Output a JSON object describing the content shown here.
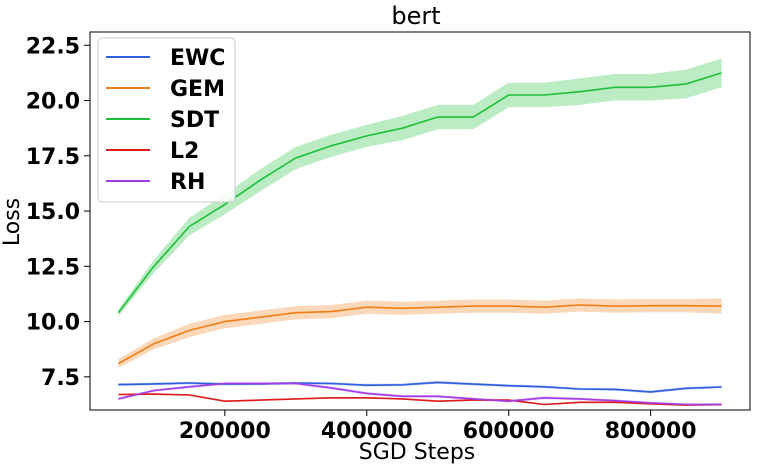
{
  "chart_data": {
    "type": "line",
    "title": "bert",
    "xlabel": "SGD Steps",
    "ylabel": "Loss",
    "xlim": [
      10000,
      940000
    ],
    "ylim": [
      6.0,
      23.1
    ],
    "x_ticks": [
      200000,
      400000,
      600000,
      800000
    ],
    "y_ticks": [
      7.5,
      10.0,
      12.5,
      15.0,
      17.5,
      20.0,
      22.5
    ],
    "x_tick_labels": [
      "200000",
      "400000",
      "600000",
      "800000"
    ],
    "y_tick_labels": [
      "7.5",
      "10.0",
      "12.5",
      "15.0",
      "17.5",
      "20.0",
      "22.5"
    ],
    "legend_position": "top-left",
    "grid": false,
    "x": [
      50000,
      100000,
      150000,
      200000,
      250000,
      300000,
      350000,
      400000,
      450000,
      500000,
      550000,
      600000,
      650000,
      700000,
      750000,
      800000,
      850000,
      900000
    ],
    "series": [
      {
        "name": "EWC",
        "color": "#2f5fe0",
        "values": [
          7.15,
          7.18,
          7.22,
          7.17,
          7.18,
          7.22,
          7.2,
          7.12,
          7.14,
          7.25,
          7.17,
          7.1,
          7.05,
          6.95,
          6.93,
          6.82,
          6.98,
          7.04
        ],
        "band": [
          0.06,
          0.06,
          0.06,
          0.06,
          0.06,
          0.06,
          0.06,
          0.06,
          0.06,
          0.06,
          0.06,
          0.06,
          0.06,
          0.06,
          0.06,
          0.06,
          0.06,
          0.06
        ]
      },
      {
        "name": "GEM",
        "color": "#f07d16",
        "values": [
          8.1,
          9.0,
          9.6,
          10.0,
          10.2,
          10.4,
          10.45,
          10.65,
          10.6,
          10.65,
          10.7,
          10.7,
          10.65,
          10.75,
          10.7,
          10.72,
          10.72,
          10.7
        ],
        "band": [
          0.2,
          0.25,
          0.3,
          0.3,
          0.3,
          0.3,
          0.3,
          0.3,
          0.3,
          0.3,
          0.3,
          0.3,
          0.3,
          0.3,
          0.3,
          0.3,
          0.3,
          0.35
        ]
      },
      {
        "name": "SDT",
        "color": "#1fc03a",
        "values": [
          10.4,
          12.5,
          14.3,
          15.3,
          16.4,
          17.4,
          17.95,
          18.4,
          18.75,
          19.25,
          19.25,
          20.25,
          20.25,
          20.4,
          20.6,
          20.6,
          20.75,
          21.25
        ],
        "band": [
          0.15,
          0.3,
          0.4,
          0.45,
          0.5,
          0.5,
          0.5,
          0.5,
          0.55,
          0.55,
          0.55,
          0.55,
          0.55,
          0.6,
          0.6,
          0.6,
          0.65,
          0.65
        ]
      },
      {
        "name": "L2",
        "color": "#dc1e1e",
        "values": [
          6.7,
          6.72,
          6.68,
          6.4,
          6.45,
          6.5,
          6.55,
          6.55,
          6.5,
          6.4,
          6.45,
          6.45,
          6.25,
          6.35,
          6.35,
          6.28,
          6.22,
          6.25
        ],
        "band": [
          0.04,
          0.04,
          0.04,
          0.04,
          0.04,
          0.04,
          0.04,
          0.04,
          0.04,
          0.04,
          0.04,
          0.04,
          0.04,
          0.04,
          0.04,
          0.04,
          0.04,
          0.04
        ]
      },
      {
        "name": "RH",
        "color": "#a33ce6",
        "values": [
          6.5,
          6.88,
          7.05,
          7.2,
          7.2,
          7.2,
          7.0,
          6.75,
          6.62,
          6.62,
          6.5,
          6.4,
          6.55,
          6.5,
          6.42,
          6.32,
          6.25,
          6.25
        ],
        "band": [
          0.06,
          0.06,
          0.06,
          0.06,
          0.06,
          0.06,
          0.06,
          0.06,
          0.06,
          0.06,
          0.06,
          0.06,
          0.06,
          0.06,
          0.06,
          0.06,
          0.06,
          0.06
        ]
      }
    ]
  }
}
